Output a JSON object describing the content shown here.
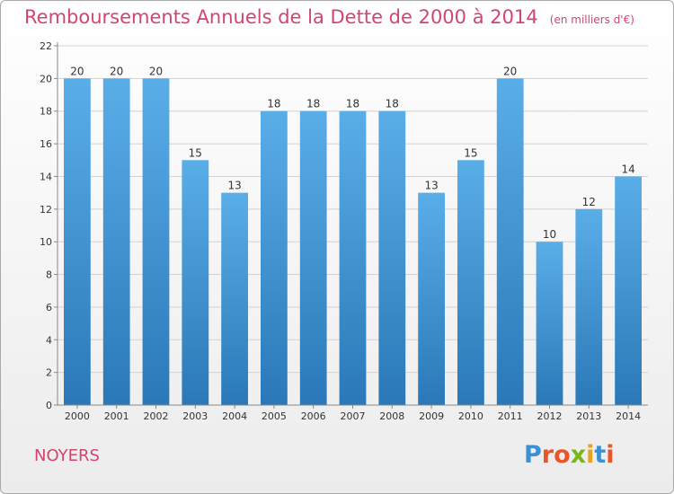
{
  "title": "Remboursements Annuels de la Dette de 2000 à 2014",
  "unit_note": "(en milliers d'€)",
  "commune": "NOYERS",
  "logo_text": "Proxiti",
  "colors": {
    "title": "#d2456e",
    "bar_top": "#5aaee8",
    "bar_bottom": "#2a78b8",
    "grid": "#d2d2d2"
  },
  "chart_data": {
    "type": "bar",
    "categories": [
      "2000",
      "2001",
      "2002",
      "2003",
      "2004",
      "2005",
      "2006",
      "2007",
      "2008",
      "2009",
      "2010",
      "2011",
      "2012",
      "2013",
      "2014"
    ],
    "values": [
      20,
      20,
      20,
      15,
      13,
      18,
      18,
      18,
      18,
      13,
      15,
      20,
      10,
      12,
      14
    ],
    "yticks": [
      0,
      2,
      4,
      6,
      8,
      10,
      12,
      14,
      16,
      18,
      20,
      22
    ],
    "ylim": [
      0,
      22
    ],
    "grid": true,
    "data_labels": true
  }
}
